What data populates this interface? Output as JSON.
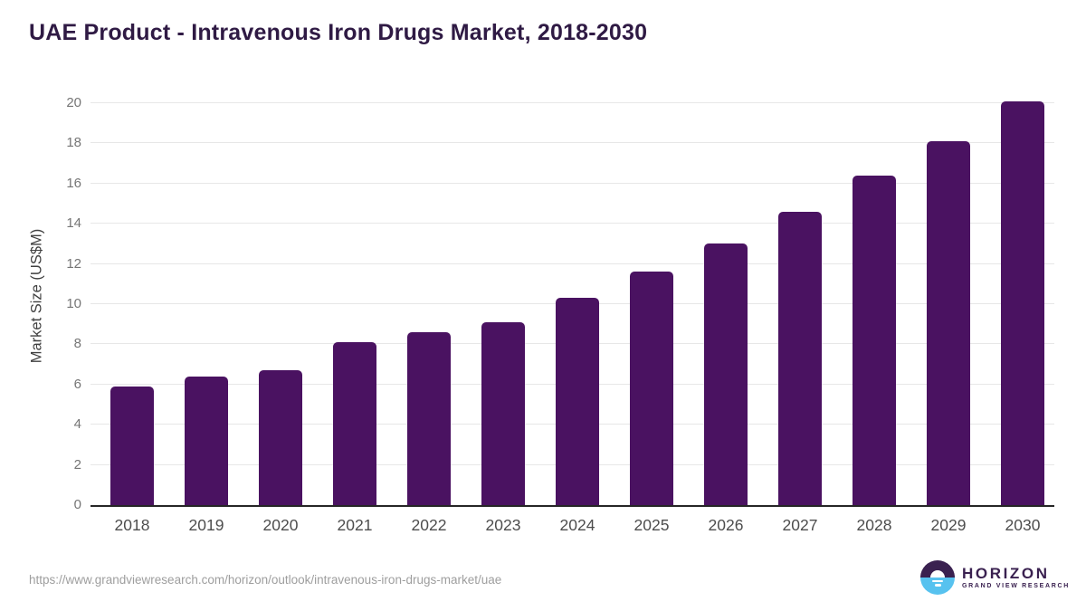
{
  "chart_data": {
    "type": "bar",
    "title": "UAE Product - Intravenous Iron Drugs Market, 2018-2030",
    "categories": [
      "2018",
      "2019",
      "2020",
      "2021",
      "2022",
      "2023",
      "2024",
      "2025",
      "2026",
      "2027",
      "2028",
      "2029",
      "2030"
    ],
    "values": [
      5.9,
      6.4,
      6.7,
      8.1,
      8.6,
      9.1,
      10.3,
      11.6,
      13.0,
      14.6,
      16.4,
      18.1,
      20.1
    ],
    "xlabel": "",
    "ylabel": "Market Size (US$M)",
    "ylim": [
      0,
      20
    ],
    "y_ticks": [
      0,
      2,
      4,
      6,
      8,
      10,
      12,
      14,
      16,
      18,
      20
    ],
    "grid": "horizontal",
    "legend": "none",
    "bar_color": "#4a1261"
  },
  "colors": {
    "title_text": "#2f1a44",
    "bar": "#4a1261",
    "gridline": "#e7e7e7",
    "axis_line": "#262626",
    "logo_purple": "#3a2150",
    "logo_blue": "#57c2ef"
  },
  "footer": {
    "source_url": "https://www.grandviewresearch.com/horizon/outlook/intravenous-iron-drugs-market/uae",
    "logo": {
      "title": "HORIZON",
      "subtitle": "GRAND VIEW RESEARCH"
    }
  }
}
